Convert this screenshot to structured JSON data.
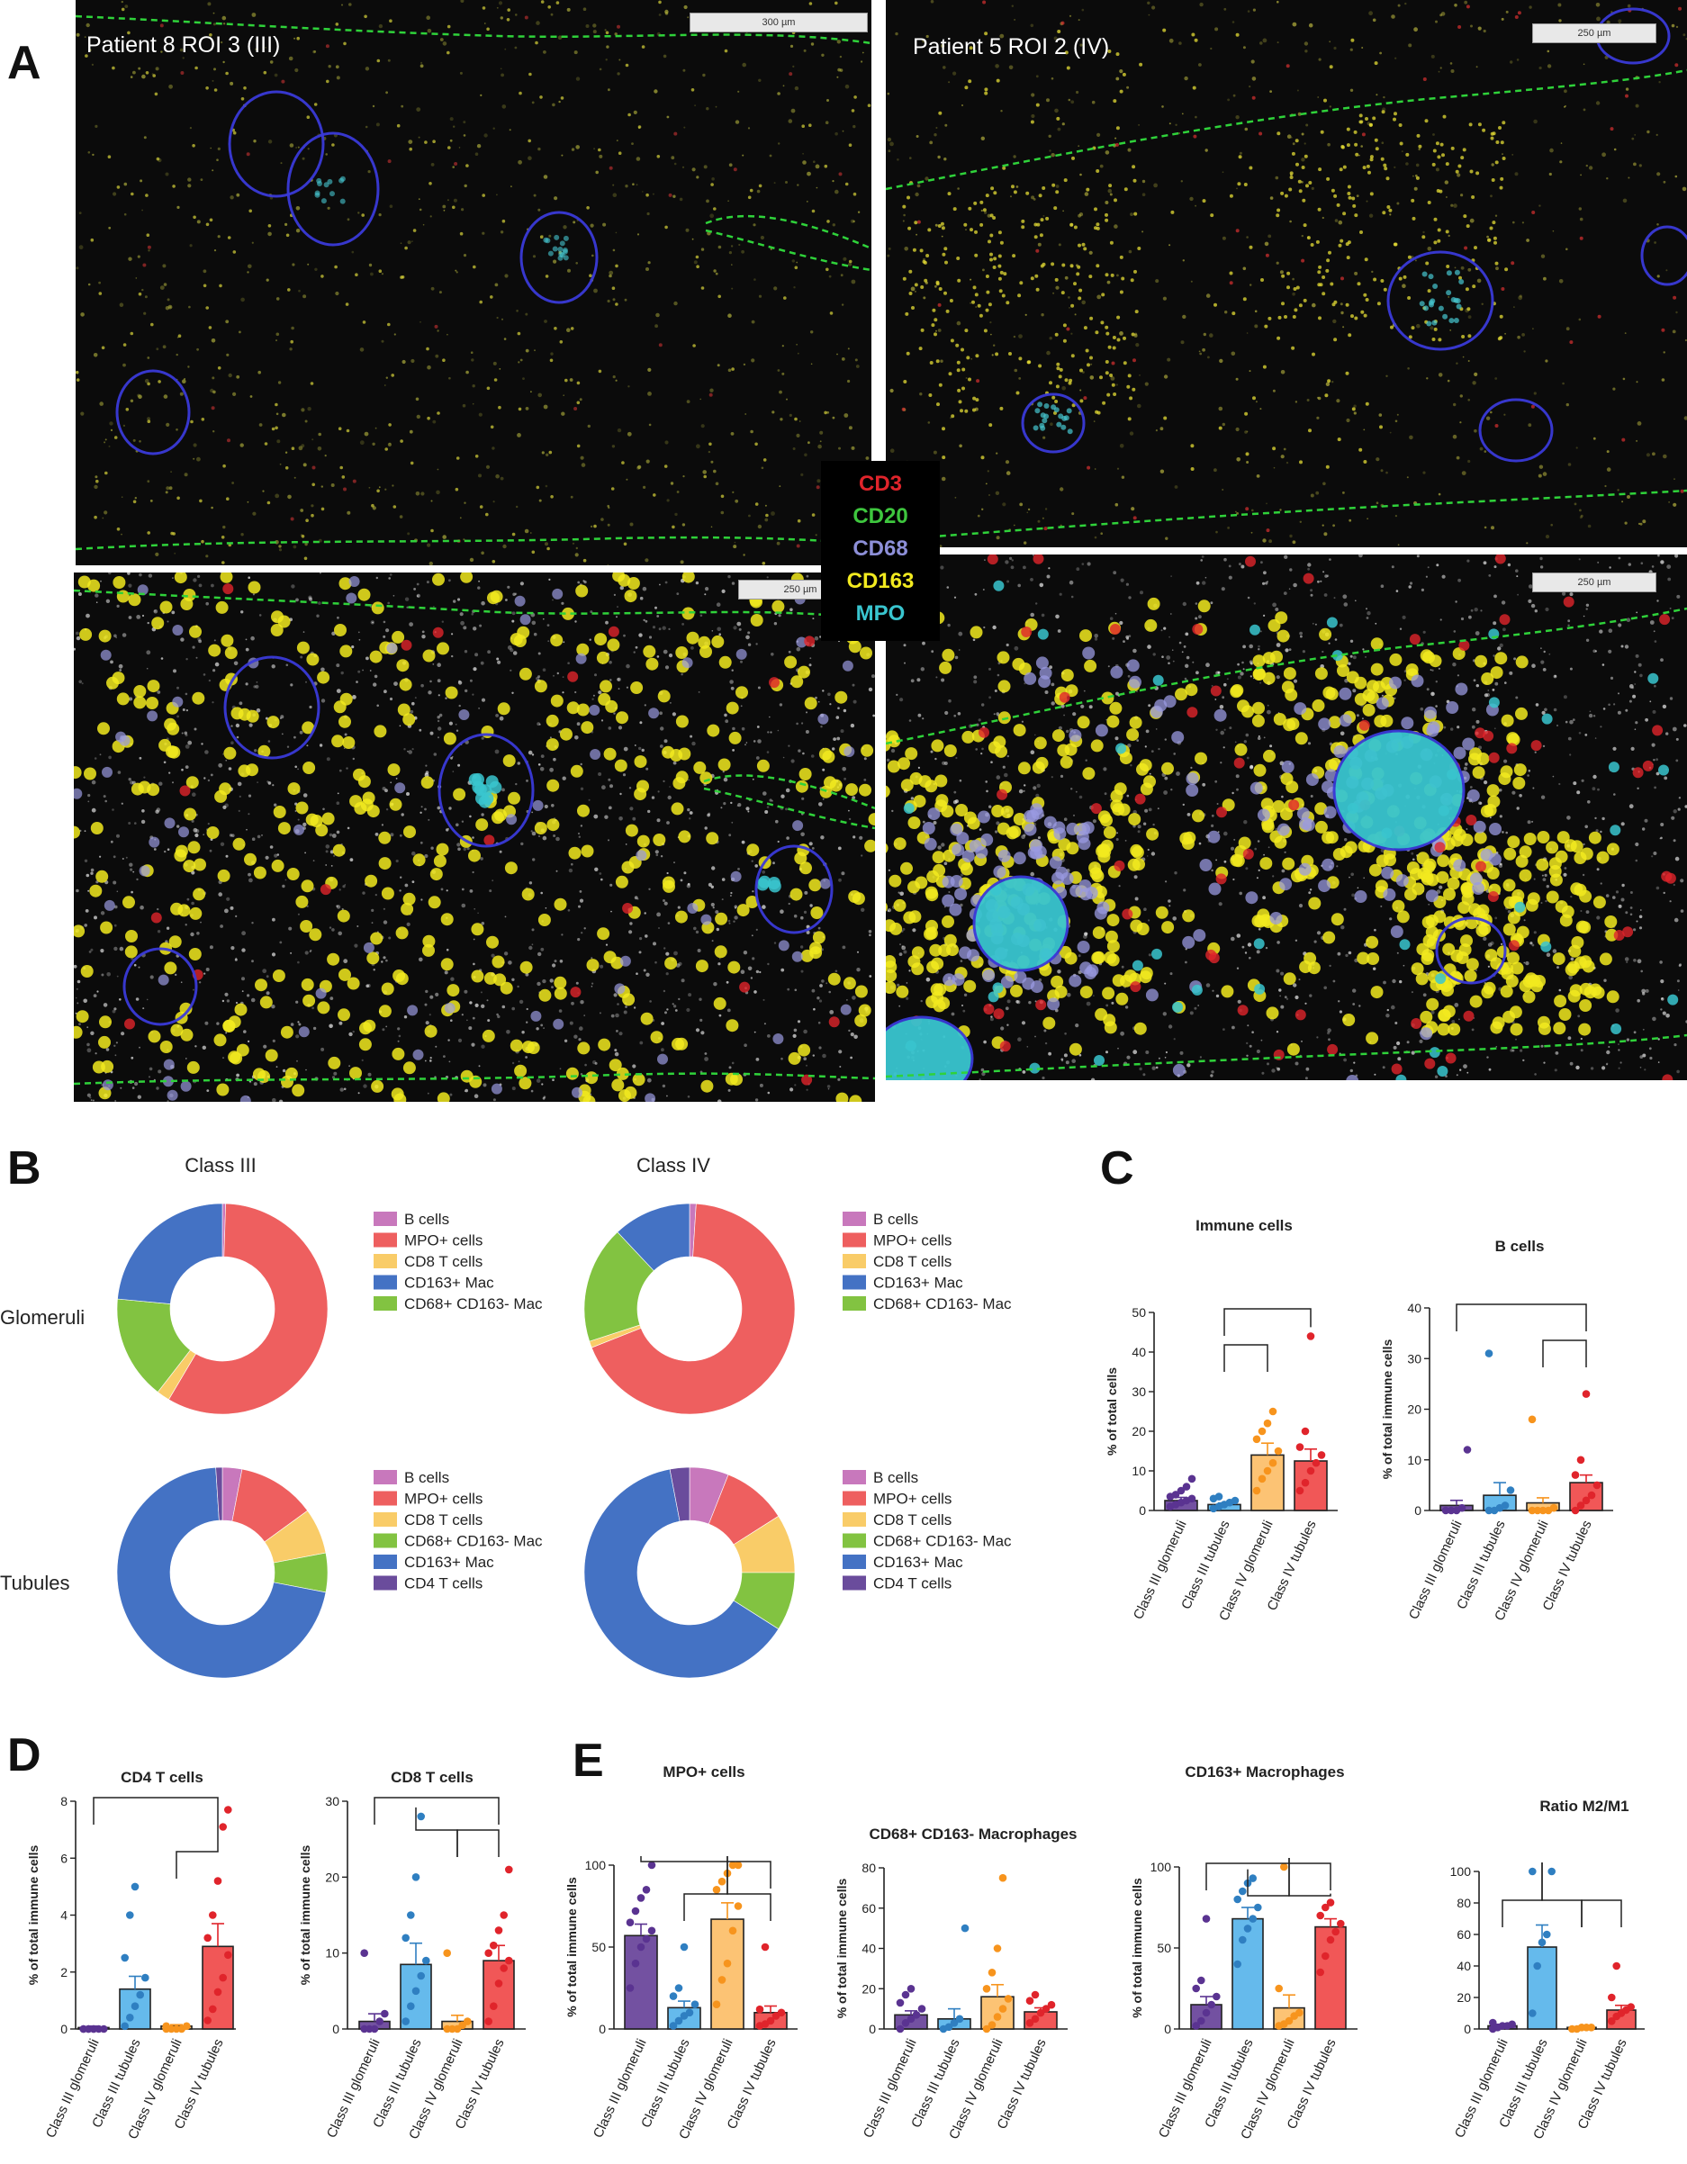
{
  "panels": {
    "A": "A",
    "B": "B",
    "C": "C",
    "D": "D",
    "E": "E"
  },
  "panel_a": {
    "titles": {
      "tl": "Patient 8 ROI 3 (III)",
      "tr": "Patient 5 ROI 2 (IV)"
    },
    "scalebars": {
      "tl": "300 µm",
      "tr": "250 µm",
      "bl": "250 µm",
      "br": "250 µm"
    },
    "channels": [
      {
        "label": "CD3",
        "color": "#e0242b"
      },
      {
        "label": "CD20",
        "color": "#3ec63e"
      },
      {
        "label": "CD68",
        "color": "#8d8fd8"
      },
      {
        "label": "CD163",
        "color": "#f2ea1f"
      },
      {
        "label": "MPO",
        "color": "#39c5cf"
      }
    ]
  },
  "panel_b": {
    "col_titles": [
      "Class III",
      "Class IV"
    ],
    "row_labels": [
      "Glomeruli",
      "Tubules"
    ],
    "legend_glomeruli": [
      "B cells",
      "MPO+ cells",
      "CD8 T cells",
      "CD163+ Mac",
      "CD68+ CD163- Mac"
    ],
    "legend_tubules": [
      "B cells",
      "MPO+ cells",
      "CD8 T cells",
      "CD68+ CD163- Mac",
      "CD163+ Mac",
      "CD4 T cells"
    ]
  },
  "chart_data": [
    {
      "type": "pie",
      "subtype": "donut",
      "panel": "B",
      "title": "Class III",
      "row": "Glomeruli",
      "slices": [
        {
          "label": "B cells",
          "value": 0.5
        },
        {
          "label": "MPO+ cells",
          "value": 58
        },
        {
          "label": "CD8 T cells",
          "value": 2
        },
        {
          "label": "CD68+ CD163- Mac",
          "value": 16
        },
        {
          "label": "CD163+ Mac",
          "value": 23.5
        }
      ]
    },
    {
      "type": "pie",
      "subtype": "donut",
      "panel": "B",
      "title": "Class IV",
      "row": "Glomeruli",
      "slices": [
        {
          "label": "B cells",
          "value": 1
        },
        {
          "label": "MPO+ cells",
          "value": 68
        },
        {
          "label": "CD8 T cells",
          "value": 1
        },
        {
          "label": "CD68+ CD163- Mac",
          "value": 18
        },
        {
          "label": "CD163+ Mac",
          "value": 12
        }
      ]
    },
    {
      "type": "pie",
      "subtype": "donut",
      "panel": "B",
      "title": "Class III",
      "row": "Tubules",
      "slices": [
        {
          "label": "B cells",
          "value": 3
        },
        {
          "label": "MPO+ cells",
          "value": 12
        },
        {
          "label": "CD8 T cells",
          "value": 7
        },
        {
          "label": "CD68+ CD163- Mac",
          "value": 6
        },
        {
          "label": "CD163+ Mac",
          "value": 71
        },
        {
          "label": "CD4 T cells",
          "value": 1
        }
      ]
    },
    {
      "type": "pie",
      "subtype": "donut",
      "panel": "B",
      "title": "Class IV",
      "row": "Tubules",
      "slices": [
        {
          "label": "B cells",
          "value": 6
        },
        {
          "label": "MPO+ cells",
          "value": 10
        },
        {
          "label": "CD8 T cells",
          "value": 9
        },
        {
          "label": "CD68+ CD163- Mac",
          "value": 9
        },
        {
          "label": "CD163+ Mac",
          "value": 63
        },
        {
          "label": "CD4 T cells",
          "value": 3
        }
      ]
    },
    {
      "type": "bar",
      "subtype": "bar_scatter",
      "panel": "C",
      "title": "Immune cells",
      "ylabel": "% of total cells",
      "ylim": [
        0,
        50
      ],
      "yticks": [
        0,
        10,
        20,
        30,
        40,
        50
      ],
      "categories": [
        "Class III glomeruli",
        "Class III tubules",
        "Class IV glomeruli",
        "Class IV tubules"
      ],
      "values": [
        2.5,
        1.5,
        14,
        12.5
      ],
      "errors": [
        0.8,
        0.4,
        3,
        3
      ],
      "points": [
        [
          1,
          1.5,
          2,
          2.5,
          3,
          3.5,
          4,
          5,
          6,
          8
        ],
        [
          0.5,
          1,
          1.5,
          2,
          2.5,
          3,
          3.5
        ],
        [
          5,
          8,
          10,
          12,
          15,
          18,
          20,
          22,
          25
        ],
        [
          5,
          7,
          10,
          12,
          14,
          16,
          20,
          44
        ]
      ],
      "comparisons": [
        [
          1,
          2
        ],
        [
          1,
          3
        ]
      ]
    },
    {
      "type": "bar",
      "subtype": "bar_scatter",
      "panel": "C",
      "title": "B cells",
      "ylabel": "% of total immune cells",
      "ylim": [
        0,
        40
      ],
      "yticks": [
        0,
        10,
        20,
        30,
        40
      ],
      "categories": [
        "Class III glomeruli",
        "Class III tubules",
        "Class IV glomeruli",
        "Class IV tubules"
      ],
      "values": [
        1,
        3,
        1.5,
        5.5
      ],
      "errors": [
        1,
        2.5,
        1,
        1.5
      ],
      "points": [
        [
          0,
          0,
          0,
          0.5,
          12
        ],
        [
          0,
          0,
          0.5,
          1,
          4,
          31
        ],
        [
          0,
          0,
          0,
          0,
          0.5,
          18
        ],
        [
          0,
          1,
          2,
          3,
          5,
          7,
          10,
          23
        ]
      ],
      "comparisons": [
        [
          0,
          3
        ],
        [
          2,
          3
        ]
      ]
    },
    {
      "type": "bar",
      "subtype": "bar_scatter",
      "panel": "D",
      "title": "CD4 T cells",
      "ylabel": "% of total immune cells",
      "ylim": [
        0,
        8
      ],
      "yticks": [
        0,
        2,
        4,
        6,
        8
      ],
      "categories": [
        "Class III glomeruli",
        "Class III tubules",
        "Class IV glomeruli",
        "Class IV tubules"
      ],
      "values": [
        0.05,
        1.4,
        0.1,
        2.9
      ],
      "errors": [
        0.05,
        0.45,
        0.05,
        0.8
      ],
      "points": [
        [
          0,
          0,
          0,
          0,
          0,
          0,
          0,
          0
        ],
        [
          0.1,
          0.4,
          0.8,
          1.2,
          1.8,
          2.5,
          4,
          5
        ],
        [
          0,
          0,
          0,
          0,
          0.1,
          0.1
        ],
        [
          0.3,
          0.7,
          1.3,
          1.8,
          2.6,
          3.2,
          4,
          5.2,
          7.1,
          7.7
        ]
      ],
      "comparisons": [
        [
          0,
          3
        ],
        [
          2,
          3
        ]
      ]
    },
    {
      "type": "bar",
      "subtype": "bar_scatter",
      "panel": "D",
      "title": "CD8 T cells",
      "ylabel": "% of total immune cells",
      "ylim": [
        0,
        30
      ],
      "yticks": [
        0,
        10,
        20,
        30
      ],
      "categories": [
        "Class III glomeruli",
        "Class III tubules",
        "Class IV glomeruli",
        "Class IV tubules"
      ],
      "values": [
        1,
        8.5,
        1,
        9
      ],
      "errors": [
        1,
        2.8,
        0.8,
        2
      ],
      "points": [
        [
          0,
          0,
          0,
          1,
          2,
          10
        ],
        [
          1,
          3,
          5,
          7,
          9,
          12,
          15,
          20,
          28
        ],
        [
          0,
          0,
          0,
          0.5,
          1,
          10
        ],
        [
          1,
          3,
          6,
          8,
          9,
          10,
          11,
          13,
          15,
          21
        ]
      ],
      "comparisons": [
        [
          0,
          3
        ],
        [
          1,
          2
        ],
        [
          2,
          3
        ]
      ]
    },
    {
      "type": "bar",
      "subtype": "bar_scatter",
      "panel": "E",
      "title": "MPO+ cells",
      "ylabel": "% of total immune cells",
      "ylim": [
        0,
        100
      ],
      "yticks": [
        0,
        50,
        100
      ],
      "categories": [
        "Class III glomeruli",
        "Class III tubules",
        "Class IV glomeruli",
        "Class IV tubules"
      ],
      "values": [
        57,
        13,
        67,
        10
      ],
      "errors": [
        7,
        4,
        10,
        4
      ],
      "points": [
        [
          25,
          40,
          50,
          55,
          60,
          65,
          72,
          80,
          85,
          100
        ],
        [
          2,
          5,
          8,
          10,
          15,
          20,
          25,
          50
        ],
        [
          15,
          30,
          40,
          60,
          75,
          85,
          90,
          95,
          100,
          100
        ],
        [
          2,
          3,
          5,
          8,
          10,
          12,
          50
        ]
      ],
      "comparisons": [
        [
          0,
          3
        ],
        [
          1,
          2
        ],
        [
          2,
          3
        ]
      ]
    },
    {
      "type": "bar",
      "subtype": "bar_scatter",
      "panel": "E",
      "title": "CD68+ CD163-  Macrophages",
      "ylabel": "% of total immune cells",
      "ylim": [
        0,
        80
      ],
      "yticks": [
        0,
        20,
        40,
        60,
        80
      ],
      "categories": [
        "Class III glomeruli",
        "Class III tubules",
        "Class IV glomeruli",
        "Class IV tubules"
      ],
      "values": [
        7,
        5,
        16,
        8.5
      ],
      "errors": [
        2,
        5,
        6,
        2
      ],
      "points": [
        [
          0,
          3,
          5,
          7,
          10,
          13,
          17,
          20
        ],
        [
          0,
          1,
          3,
          5,
          50
        ],
        [
          0,
          2,
          6,
          10,
          15,
          20,
          28,
          40,
          75
        ],
        [
          3,
          5,
          8,
          10,
          12,
          14,
          17
        ]
      ],
      "comparisons": []
    },
    {
      "type": "bar",
      "subtype": "bar_scatter",
      "panel": "E",
      "title": "CD163+ Macrophages",
      "ylabel": "% of total immune cells",
      "ylim": [
        0,
        100
      ],
      "yticks": [
        0,
        50,
        100
      ],
      "categories": [
        "Class III glomeruli",
        "Class III tubules",
        "Class IV glomeruli",
        "Class IV tubules"
      ],
      "values": [
        15,
        68,
        13,
        63
      ],
      "errors": [
        5,
        7,
        8,
        5
      ],
      "points": [
        [
          2,
          5,
          10,
          15,
          20,
          25,
          30,
          68
        ],
        [
          40,
          55,
          62,
          68,
          75,
          80,
          85,
          90,
          93
        ],
        [
          2,
          3,
          5,
          8,
          10,
          25,
          100
        ],
        [
          35,
          45,
          55,
          60,
          65,
          70,
          75,
          78
        ]
      ],
      "comparisons": [
        [
          0,
          3
        ],
        [
          1,
          2
        ],
        [
          2,
          3
        ]
      ]
    },
    {
      "type": "bar",
      "subtype": "bar_scatter",
      "panel": "E",
      "title": "Ratio M2/M1",
      "ylabel": "",
      "ylim": [
        0,
        100
      ],
      "yticks": [
        0,
        20,
        40,
        60,
        80,
        100
      ],
      "categories": [
        "Class III glomeruli",
        "Class III tubules",
        "Class IV glomeruli",
        "Class IV tubules"
      ],
      "values": [
        2,
        52,
        1,
        12
      ],
      "errors": [
        1,
        14,
        0.5,
        3
      ],
      "points": [
        [
          0,
          1,
          2,
          2,
          3,
          4
        ],
        [
          10,
          40,
          55,
          60,
          100,
          100
        ],
        [
          0,
          0,
          1,
          1,
          1
        ],
        [
          5,
          8,
          10,
          12,
          14,
          20,
          40
        ]
      ],
      "comparisons": [
        [
          0,
          1
        ],
        [
          1,
          2
        ],
        [
          2,
          3
        ]
      ]
    }
  ]
}
